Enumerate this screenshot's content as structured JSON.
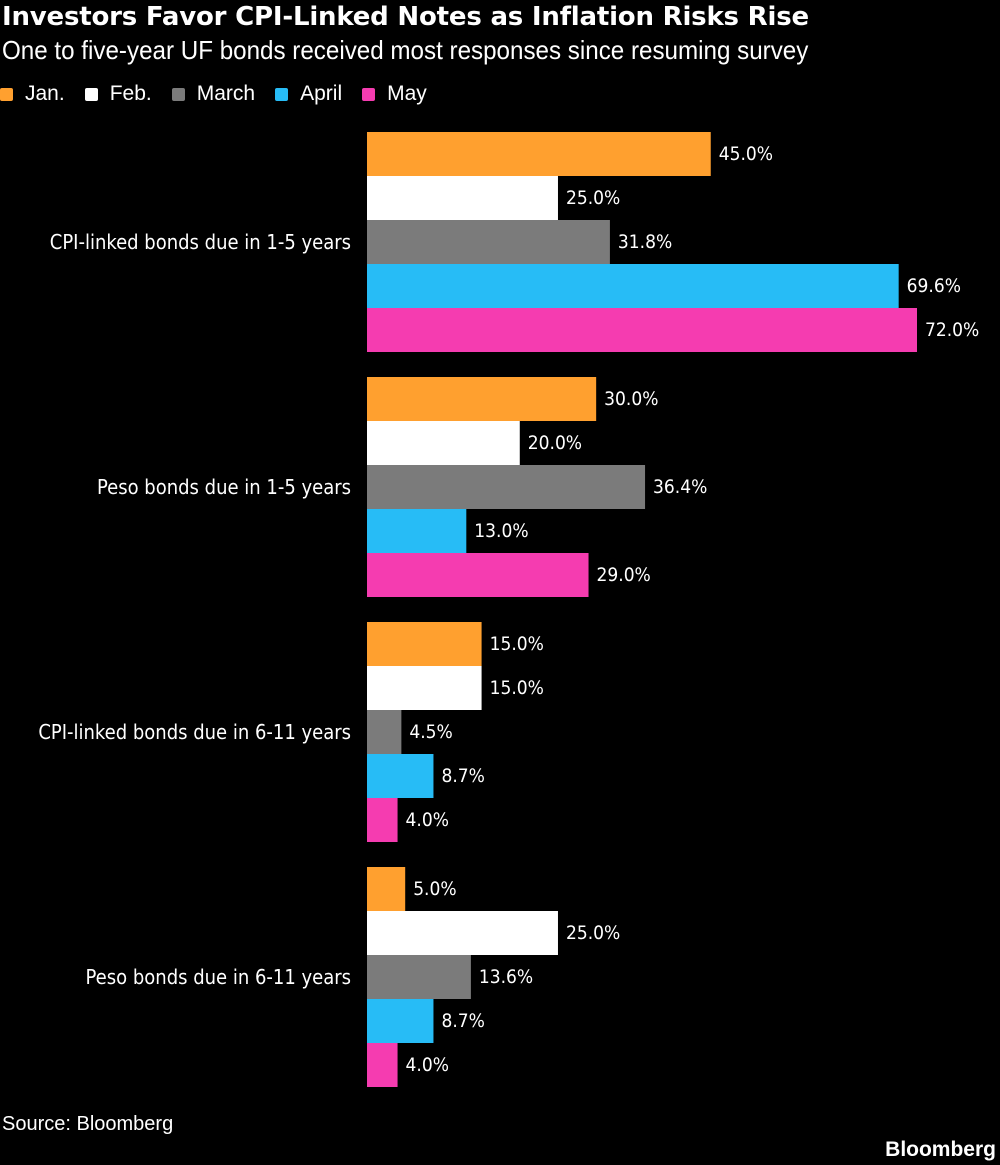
{
  "title": "Investors Favor CPI-Linked Notes as Inflation Risks Rise",
  "subtitle": "One to five-year UF bonds received most responses since resuming survey",
  "source": "Source: Bloomberg",
  "brand": "Bloomberg",
  "colors": {
    "background": "#000000",
    "text": "#ffffff"
  },
  "chart_data": {
    "type": "bar",
    "orientation": "horizontal",
    "categories": [
      "CPI-linked bonds due in 1-5 years",
      "Peso bonds due in 1-5 years",
      "CPI-linked bonds due in 6-11 years",
      "Peso bonds due in 6-11 years"
    ],
    "series": [
      {
        "name": "Jan.",
        "color": "#ffa02f",
        "values": [
          45.0,
          30.0,
          15.0,
          5.0
        ],
        "labels": [
          "45.0%",
          "30.0%",
          "15.0%",
          "5.0%"
        ]
      },
      {
        "name": "Feb.",
        "color": "#ffffff",
        "values": [
          25.0,
          20.0,
          15.0,
          25.0
        ],
        "labels": [
          "25.0%",
          "20.0%",
          "15.0%",
          "25.0%"
        ]
      },
      {
        "name": "March",
        "color": "#7b7b7b",
        "values": [
          31.8,
          36.4,
          4.5,
          13.6
        ],
        "labels": [
          "31.8%",
          "36.4%",
          "4.5%",
          "13.6%"
        ]
      },
      {
        "name": "April",
        "color": "#27bcf6",
        "values": [
          69.6,
          13.0,
          8.7,
          8.7
        ],
        "labels": [
          "69.6%",
          "13.0%",
          "8.7%",
          "8.7%"
        ]
      },
      {
        "name": "May",
        "color": "#f53cb0",
        "values": [
          72.0,
          29.0,
          4.0,
          4.0
        ],
        "labels": [
          "72.0%",
          "29.0%",
          "4.0%",
          "4.0%"
        ]
      }
    ],
    "xlim": [
      0,
      72
    ],
    "grid": false,
    "legend_position": "top-left"
  }
}
